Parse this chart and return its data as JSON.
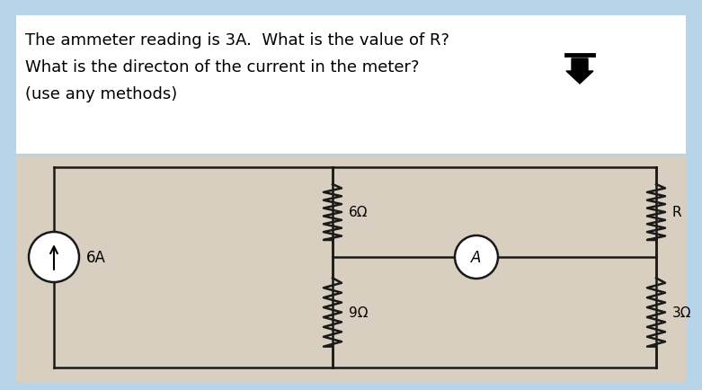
{
  "bg_color": "#b8d4e8",
  "text_box_bg": "#ffffff",
  "circuit_bg": "#d8cfc0",
  "title_lines": [
    "The ammeter reading is 3A.  What is the value of R?",
    "What is the directon of the current in the meter?",
    "(use any methods)"
  ],
  "title_fontsize": 13.0,
  "wire_color": "#1a1a1a",
  "circuit": {
    "res1_label": "6Ω",
    "res2_label": "9Ω",
    "res3_label": "R",
    "res4_label": "3Ω",
    "source_label": "6A",
    "ammeter_label": "A"
  }
}
